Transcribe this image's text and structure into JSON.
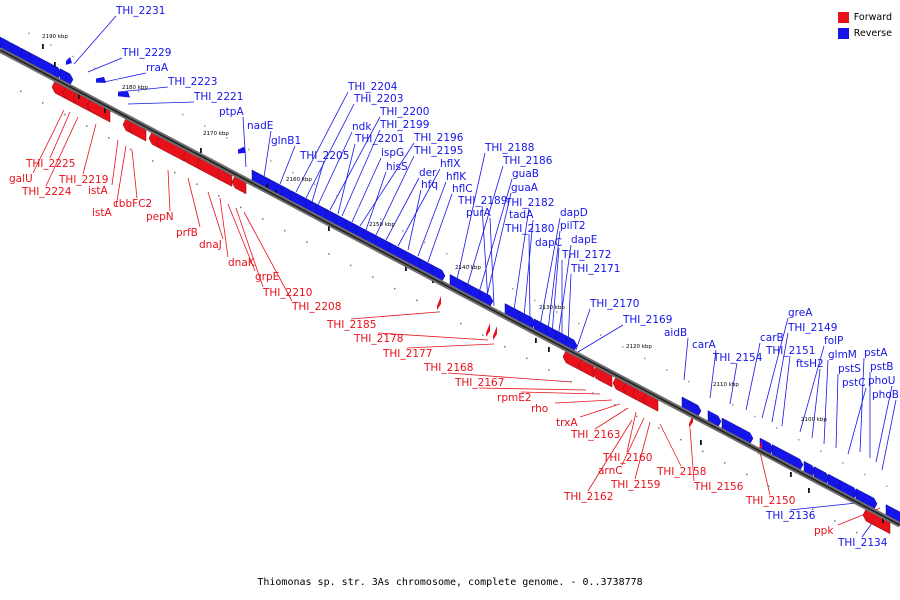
{
  "caption": "Thiomonas sp. str. 3As chromosome, complete genome. - 0..3738778",
  "colors": {
    "forward": "#e8101a",
    "reverse": "#1515ea"
  },
  "legend": [
    {
      "label": "Forward",
      "strand": "forward",
      "color": "#e8101a"
    },
    {
      "label": "Reverse",
      "strand": "reverse",
      "color": "#1515ea"
    }
  ],
  "kbp_ticks": [
    "2190 kbp",
    "2180 kbp",
    "2170 kbp",
    "2160 kbp",
    "2150 kbp",
    "2140 kbp",
    "2130 kbp",
    "2120 kbp",
    "2110 kbp",
    "2100 kbp"
  ],
  "reverse_labels": [
    "THI_2231",
    "THI_2229",
    "rraA",
    "THI_2223",
    "THI_2221",
    "ptpA",
    "nadE",
    "glnB1",
    "THI_2204",
    "THI_2203",
    "ndk",
    "THI_2205",
    "THI_2200",
    "THI_2199",
    "THI_2201",
    "ispG",
    "THI_2196",
    "hisS",
    "THI_2195",
    "der",
    "hflX",
    "hfq",
    "hflK",
    "hflC",
    "THI_2188",
    "THI_2186",
    "guaB",
    "guaA",
    "THI_2189",
    "purA",
    "THI_2182",
    "tadA",
    "THI_2180",
    "dapD",
    "pilT2",
    "dapC",
    "dapE",
    "THI_2172",
    "THI_2171",
    "THI_2170",
    "THI_2169",
    "aidB",
    "carA",
    "THI_2154",
    "carB",
    "greA",
    "THI_2149",
    "THI_2151",
    "folP",
    "ftsH2",
    "glmM",
    "pstS",
    "pstA",
    "pstB",
    "pstC",
    "phoU",
    "phoB",
    "THI_2136",
    "THI_2134"
  ],
  "forward_labels": [
    "galU",
    "THI_2225",
    "THI_2224",
    "THI_2219",
    "istA",
    "istA",
    "cbbFC2",
    "pepN",
    "prfB",
    "dnaJ",
    "dnaK",
    "grpE",
    "THI_2210",
    "THI_2208",
    "THI_2185",
    "THI_2178",
    "THI_2177",
    "THI_2168",
    "THI_2167",
    "rpmE2",
    "rho",
    "trxA",
    "THI_2163",
    "THI_2160",
    "arnC",
    "THI_2159",
    "THI_2162",
    "THI_2158",
    "THI_2156",
    "THI_2150",
    "ppk"
  ]
}
